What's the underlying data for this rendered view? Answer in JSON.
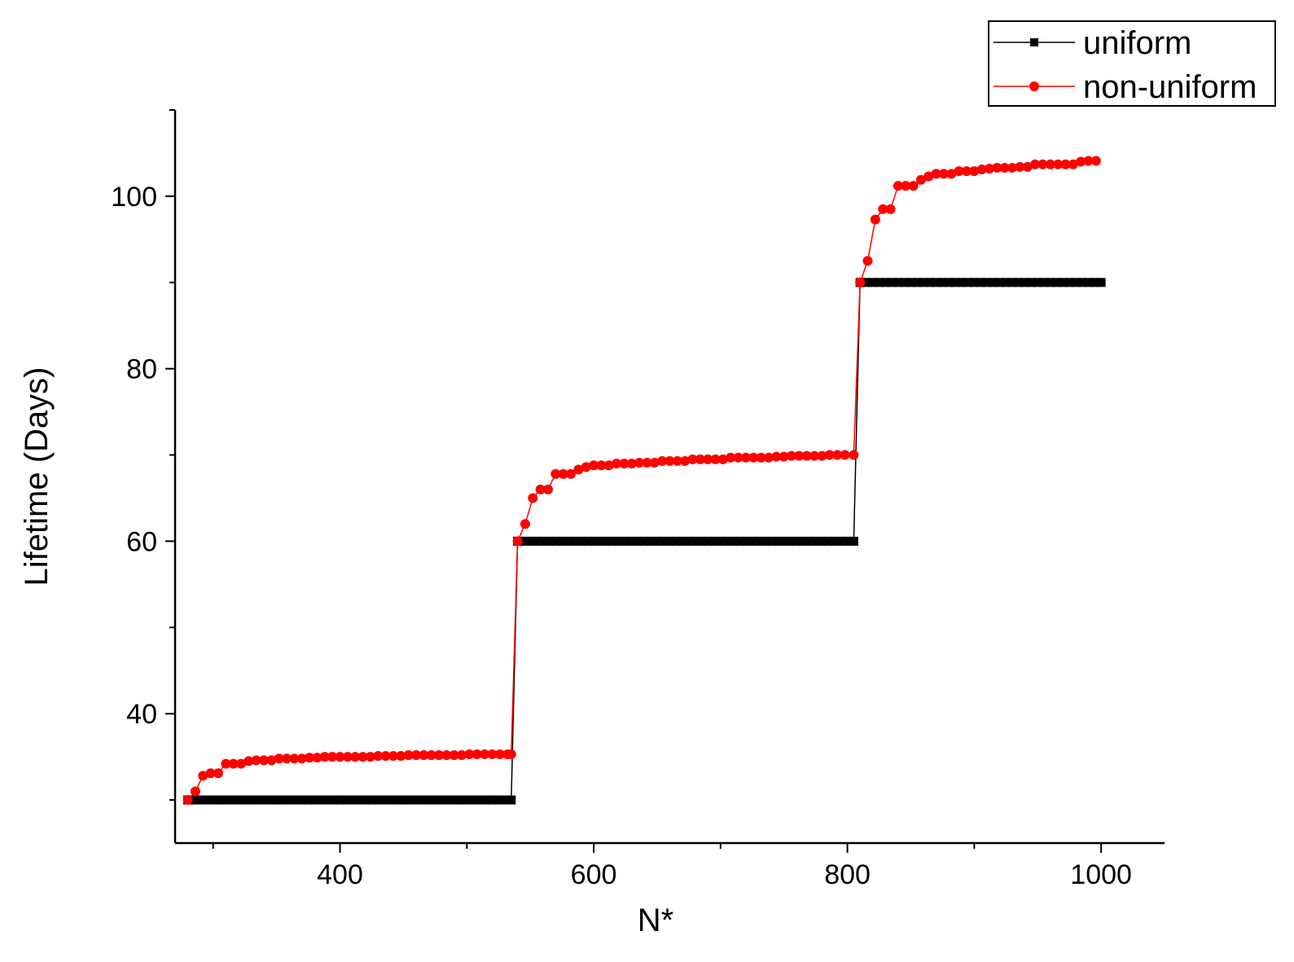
{
  "chart_data": {
    "type": "line",
    "title": "",
    "xlabel": "N*",
    "ylabel": "Lifetime (Days)",
    "xlim": [
      270,
      1050
    ],
    "ylim": [
      25,
      110
    ],
    "xticks": [
      400,
      600,
      800,
      1000
    ],
    "xtick_labels": [
      "400",
      "600",
      "800",
      "1000"
    ],
    "yticks": [
      40,
      60,
      80,
      100
    ],
    "ytick_labels": [
      "40",
      "60",
      "80",
      "100"
    ],
    "legend_position": "top-right",
    "series": [
      {
        "name": "uniform",
        "color": "#000000",
        "marker": "square",
        "x_range": [
          280,
          1000
        ],
        "x_step": 5,
        "segments": [
          {
            "x_from": 280,
            "x_to": 535,
            "y": 30
          },
          {
            "x_from": 540,
            "x_to": 805,
            "y": 60
          },
          {
            "x_from": 810,
            "x_to": 1000,
            "y": 90
          }
        ]
      },
      {
        "name": "non-uniform",
        "color": "#ff0000",
        "marker": "circle",
        "x": [
          280,
          286,
          292,
          298,
          304,
          310,
          316,
          322,
          328,
          334,
          340,
          346,
          352,
          358,
          364,
          370,
          376,
          382,
          388,
          394,
          400,
          406,
          412,
          418,
          424,
          430,
          436,
          442,
          448,
          454,
          460,
          466,
          472,
          478,
          484,
          490,
          496,
          502,
          508,
          514,
          520,
          526,
          532,
          535,
          540,
          546,
          552,
          558,
          564,
          570,
          576,
          582,
          588,
          594,
          600,
          606,
          612,
          618,
          624,
          630,
          636,
          642,
          648,
          654,
          660,
          666,
          672,
          678,
          684,
          690,
          696,
          702,
          708,
          714,
          720,
          726,
          732,
          738,
          744,
          750,
          756,
          762,
          768,
          774,
          780,
          786,
          792,
          798,
          805,
          810,
          816,
          822,
          828,
          834,
          840,
          846,
          852,
          858,
          864,
          870,
          876,
          882,
          888,
          894,
          900,
          906,
          912,
          918,
          924,
          930,
          936,
          942,
          948,
          954,
          960,
          966,
          972,
          978,
          984,
          990,
          996
        ],
        "y": [
          30,
          31,
          32.8,
          33.1,
          33.1,
          34.2,
          34.2,
          34.2,
          34.5,
          34.6,
          34.6,
          34.6,
          34.8,
          34.8,
          34.8,
          34.8,
          34.9,
          34.9,
          35.0,
          35.0,
          35.0,
          35.0,
          35.0,
          35.0,
          35.0,
          35.1,
          35.1,
          35.1,
          35.1,
          35.2,
          35.2,
          35.2,
          35.2,
          35.2,
          35.2,
          35.2,
          35.2,
          35.3,
          35.3,
          35.3,
          35.3,
          35.3,
          35.3,
          35.3,
          60,
          62,
          65,
          66,
          66,
          67.8,
          67.8,
          67.8,
          68.3,
          68.6,
          68.8,
          68.8,
          68.8,
          69.0,
          69.0,
          69.0,
          69.1,
          69.1,
          69.1,
          69.3,
          69.3,
          69.3,
          69.3,
          69.5,
          69.5,
          69.5,
          69.5,
          69.5,
          69.7,
          69.7,
          69.7,
          69.7,
          69.7,
          69.7,
          69.8,
          69.8,
          69.9,
          69.9,
          69.9,
          69.9,
          69.9,
          70.0,
          70.0,
          70.0,
          70.0,
          90,
          92.5,
          97.3,
          98.5,
          98.5,
          101.2,
          101.2,
          101.2,
          101.9,
          102.3,
          102.6,
          102.6,
          102.6,
          102.9,
          102.9,
          102.9,
          103.1,
          103.2,
          103.3,
          103.3,
          103.3,
          103.4,
          103.4,
          103.7,
          103.7,
          103.7,
          103.7,
          103.7,
          103.7,
          104.0,
          104.1,
          104.1
        ]
      }
    ]
  }
}
